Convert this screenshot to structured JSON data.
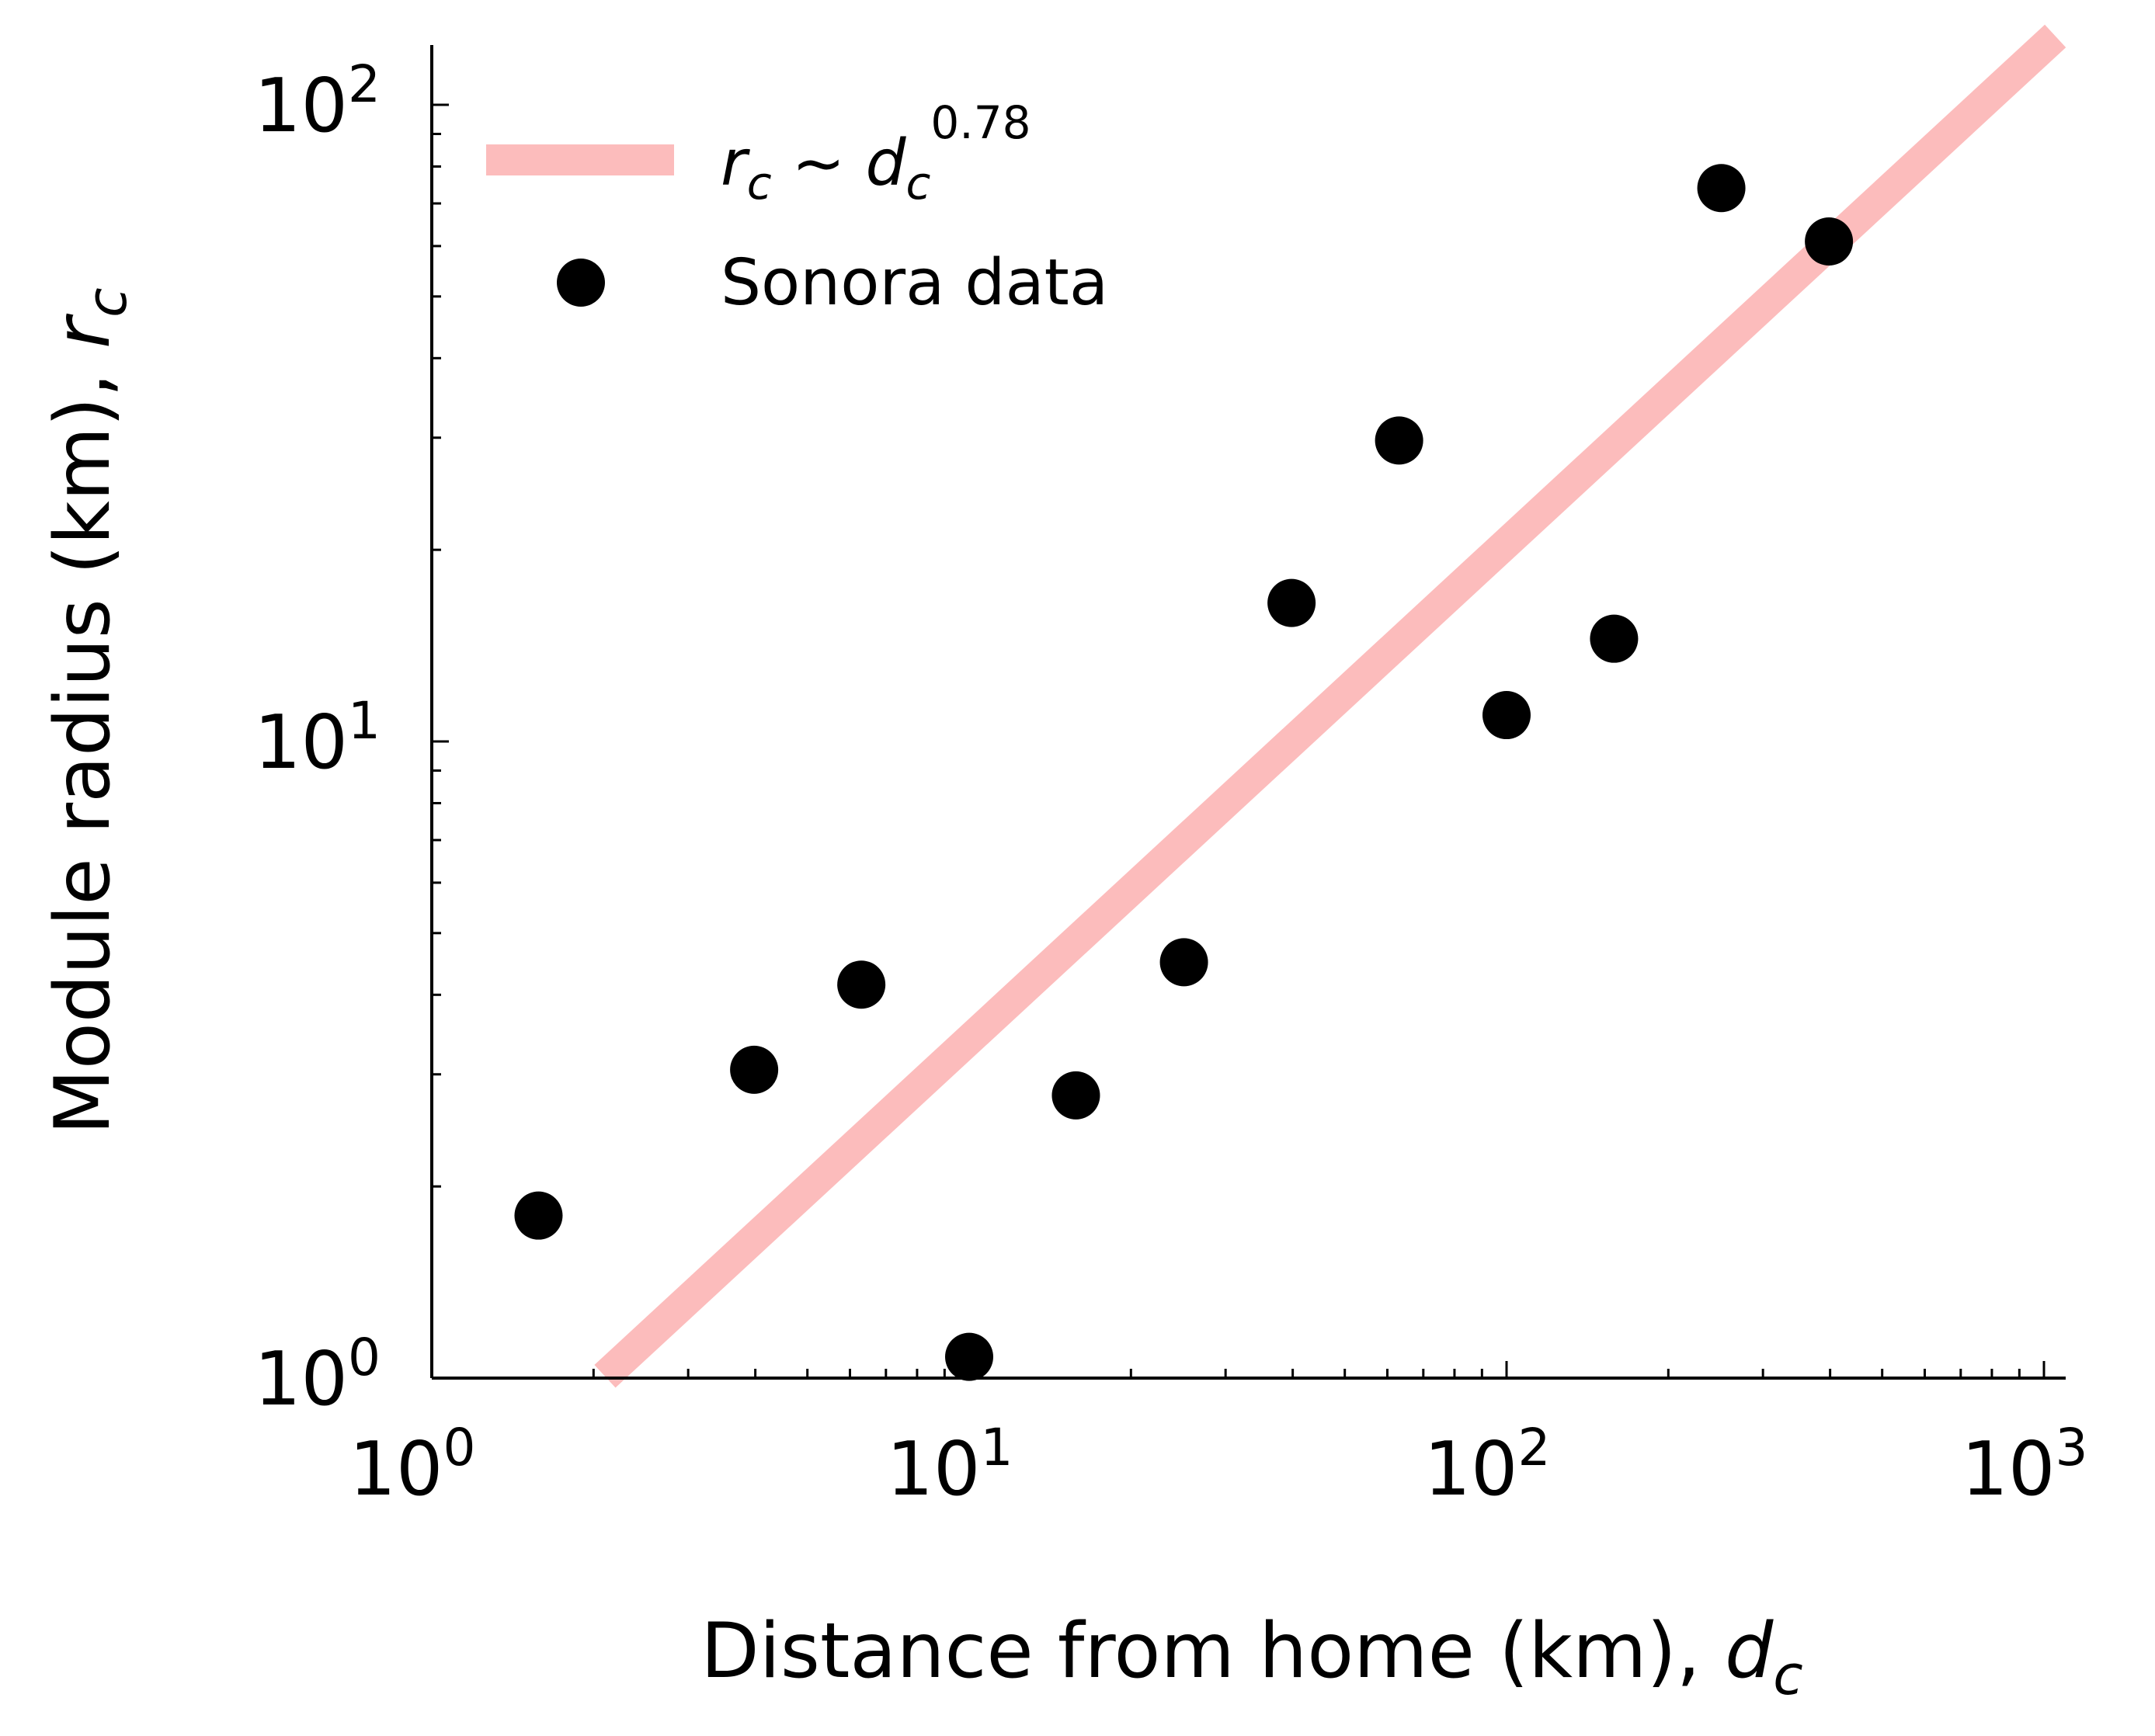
{
  "chart_data": {
    "type": "scatter",
    "xlabel": {
      "text": "Distance from home (km), ",
      "symbol": "d",
      "subscript": "c"
    },
    "ylabel": {
      "text": "Module radius (km), ",
      "symbol": "r",
      "subscript": "c"
    },
    "x_scale": "log",
    "y_scale": "log",
    "xlim": [
      1,
      1100
    ],
    "ylim": [
      1,
      125
    ],
    "x_ticks": [
      {
        "value": 1,
        "base": "10",
        "exp": "0"
      },
      {
        "value": 10,
        "base": "10",
        "exp": "1"
      },
      {
        "value": 100,
        "base": "10",
        "exp": "2"
      },
      {
        "value": 1000,
        "base": "10",
        "exp": "3"
      }
    ],
    "y_ticks": [
      {
        "value": 1,
        "base": "10",
        "exp": "0"
      },
      {
        "value": 10,
        "base": "10",
        "exp": "1"
      },
      {
        "value": 100,
        "base": "10",
        "exp": "2"
      }
    ],
    "grid": false,
    "legend_position": "top-left",
    "series": [
      {
        "name": "Sonora data",
        "kind": "scatter",
        "color": "#000000",
        "points": [
          {
            "x": 1.58,
            "y": 1.8
          },
          {
            "x": 3.98,
            "y": 3.05
          },
          {
            "x": 6.3,
            "y": 4.15
          },
          {
            "x": 10.0,
            "y": 1.08
          },
          {
            "x": 15.8,
            "y": 2.78
          },
          {
            "x": 25.1,
            "y": 4.5
          },
          {
            "x": 39.8,
            "y": 16.5
          },
          {
            "x": 63.1,
            "y": 29.7
          },
          {
            "x": 100,
            "y": 11.0
          },
          {
            "x": 158.5,
            "y": 14.5
          },
          {
            "x": 251,
            "y": 74
          },
          {
            "x": 398,
            "y": 61
          }
        ]
      },
      {
        "name": {
          "symbol_y": "r",
          "sub_y": "c",
          "relation": " ~ ",
          "symbol_x": "d",
          "sub_x": "c",
          "exponent": "0.78"
        },
        "kind": "fit-line",
        "color": "#fcbcbc",
        "exponent": 0.78,
        "x_range": [
          2.1,
          1050
        ],
        "reference_point": {
          "x": 10,
          "y": 3.4
        }
      }
    ]
  }
}
